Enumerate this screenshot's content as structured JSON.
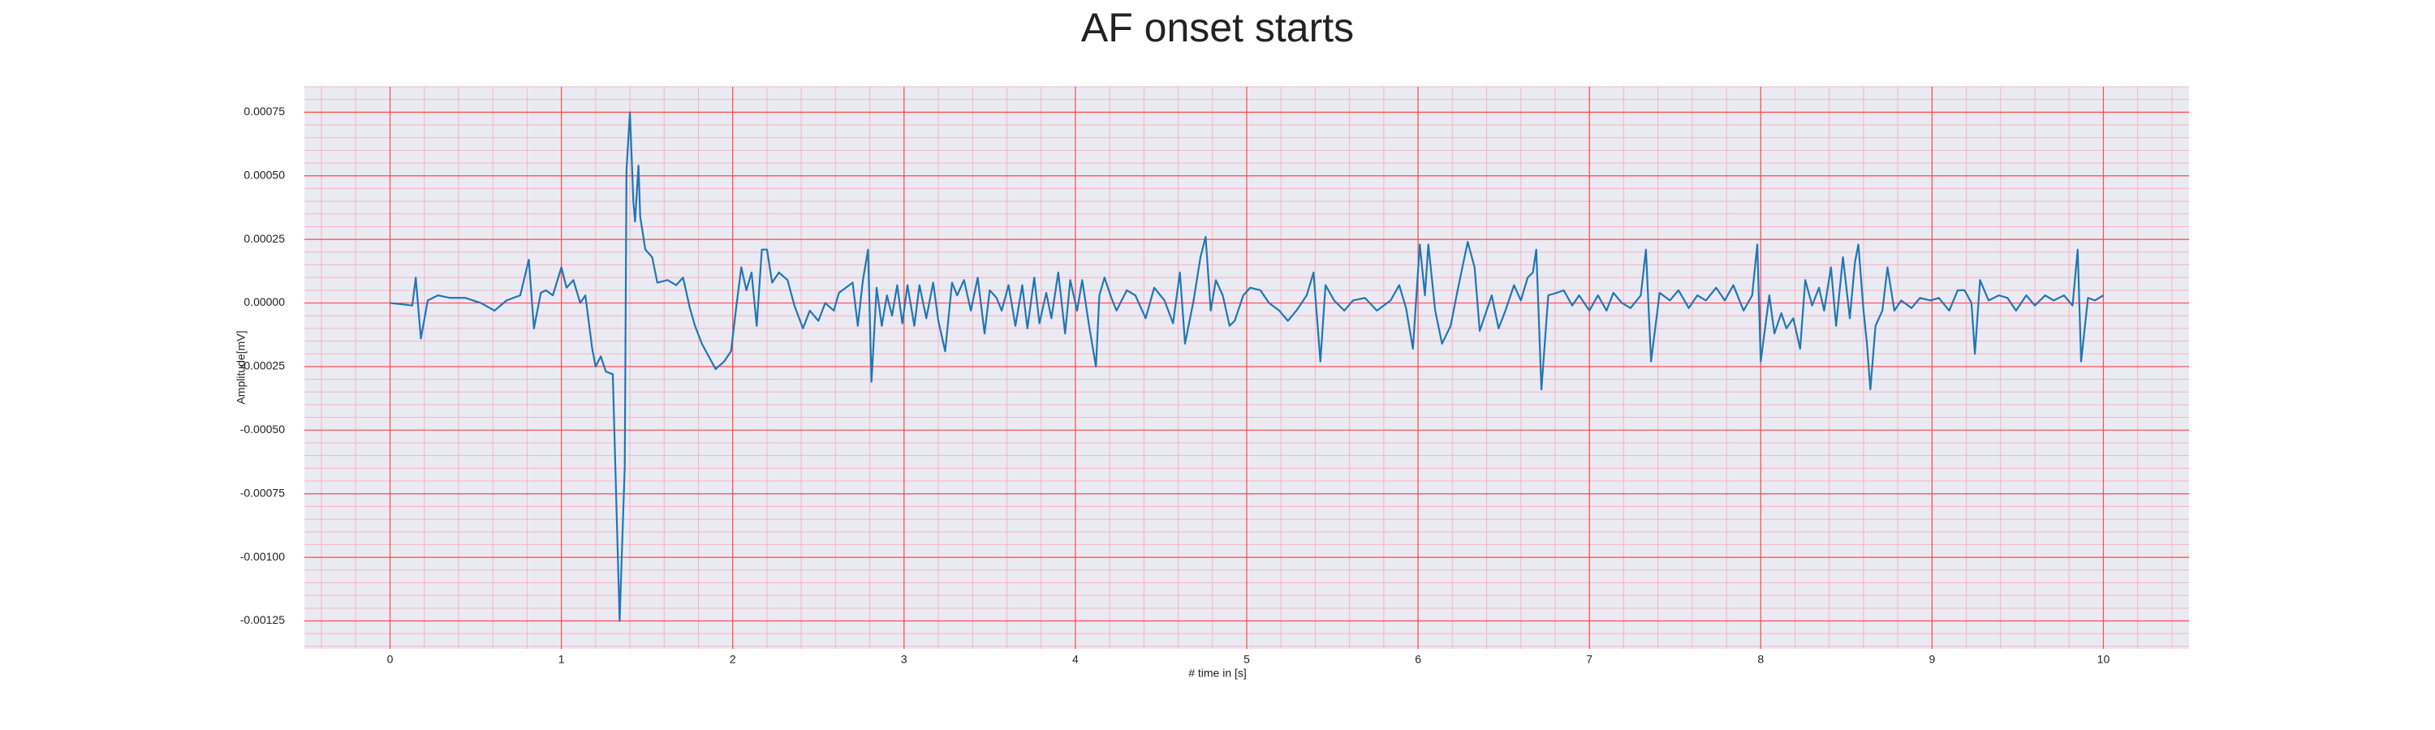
{
  "chart_data": {
    "type": "line",
    "title": "AF onset starts",
    "x_label": "# time in [s]",
    "y_label": "Amplitude[mV]",
    "color": "#1f77b4",
    "grid": true,
    "minor_grid": true,
    "xlim": [
      -0.5,
      10.5
    ],
    "xticks": [
      0,
      1,
      2,
      3,
      4,
      5,
      6,
      7,
      8,
      9,
      10
    ],
    "ylim": [
      -0.00136,
      0.00085
    ],
    "yticks": [
      -0.00125,
      {
        "value": -0.001,
        "label": "-0.00100"
      },
      -0.00075,
      {
        "value": -0.0005,
        "label": "-0.00050"
      },
      -0.00025,
      {
        "value": 0,
        "label": "0.00000"
      },
      0.00025,
      {
        "value": 0.0005,
        "label": "0.00050"
      },
      0.00075
    ],
    "x": [
      0,
      0.08,
      0.13,
      0.15,
      0.18,
      0.22,
      0.28,
      0.35,
      0.44,
      0.53,
      0.61,
      0.68,
      0.76,
      0.81,
      0.84,
      0.88,
      0.91,
      0.95,
      1.0,
      1.03,
      1.07,
      1.11,
      1.14,
      1.18,
      1.2,
      1.23,
      1.26,
      1.3,
      1.34,
      1.37,
      1.38,
      1.4,
      1.42,
      1.43,
      1.45,
      1.46,
      1.49,
      1.53,
      1.56,
      1.62,
      1.67,
      1.71,
      1.75,
      1.78,
      1.82,
      1.86,
      1.9,
      1.95,
      1.99,
      2.02,
      2.05,
      2.08,
      2.11,
      2.14,
      2.17,
      2.2,
      2.23,
      2.27,
      2.32,
      2.36,
      2.41,
      2.45,
      2.5,
      2.54,
      2.59,
      2.62,
      2.66,
      2.7,
      2.73,
      2.76,
      2.79,
      2.81,
      2.84,
      2.87,
      2.9,
      2.93,
      2.96,
      2.99,
      3.02,
      3.06,
      3.09,
      3.13,
      3.17,
      3.2,
      3.24,
      3.28,
      3.31,
      3.35,
      3.39,
      3.43,
      3.47,
      3.5,
      3.54,
      3.57,
      3.61,
      3.65,
      3.69,
      3.72,
      3.76,
      3.79,
      3.83,
      3.86,
      3.9,
      3.94,
      3.97,
      4.01,
      4.04,
      4.08,
      4.12,
      4.14,
      4.17,
      4.21,
      4.24,
      4.3,
      4.35,
      4.41,
      4.46,
      4.52,
      4.57,
      4.61,
      4.64,
      4.69,
      4.73,
      4.76,
      4.79,
      4.82,
      4.86,
      4.9,
      4.93,
      4.98,
      5.02,
      5.08,
      5.13,
      5.19,
      5.24,
      5.29,
      5.35,
      5.39,
      5.43,
      5.46,
      5.51,
      5.57,
      5.62,
      5.69,
      5.76,
      5.84,
      5.89,
      5.93,
      5.97,
      6.01,
      6.04,
      6.06,
      6.1,
      6.14,
      6.19,
      6.24,
      6.29,
      6.33,
      6.36,
      6.4,
      6.43,
      6.47,
      6.51,
      6.56,
      6.6,
      6.64,
      6.67,
      6.69,
      6.72,
      6.76,
      6.81,
      6.85,
      6.9,
      6.94,
      7.0,
      7.05,
      7.1,
      7.14,
      7.19,
      7.24,
      7.3,
      7.33,
      7.36,
      7.41,
      7.47,
      7.52,
      7.58,
      7.63,
      7.68,
      7.74,
      7.79,
      7.84,
      7.9,
      7.95,
      7.98,
      8.0,
      8.05,
      8.08,
      8.12,
      8.15,
      8.19,
      8.23,
      8.26,
      8.3,
      8.34,
      8.37,
      8.41,
      8.44,
      8.48,
      8.52,
      8.55,
      8.57,
      8.6,
      8.62,
      8.64,
      8.67,
      8.71,
      8.74,
      8.78,
      8.82,
      8.88,
      8.93,
      8.99,
      9.04,
      9.1,
      9.15,
      9.19,
      9.23,
      9.25,
      9.28,
      9.33,
      9.39,
      9.44,
      9.49,
      9.55,
      9.6,
      9.66,
      9.71,
      9.77,
      9.82,
      9.85,
      9.87,
      9.91,
      9.95,
      10.0
    ],
    "values": [
      0,
      -6e-06,
      -1e-05,
      0.0001,
      -0.00014,
      1e-05,
      3e-05,
      2e-05,
      2e-05,
      0,
      -3e-05,
      1e-05,
      3e-05,
      0.00017,
      -0.0001,
      4e-05,
      5e-05,
      3e-05,
      0.00014,
      6e-05,
      9e-05,
      0,
      3e-05,
      -0.00018,
      -0.00025,
      -0.00021,
      -0.00027,
      -0.00028,
      -0.00125,
      -0.00064,
      0.00052,
      0.00075,
      0.0004,
      0.00032,
      0.00054,
      0.00034,
      0.00021,
      0.00018,
      8e-05,
      9e-05,
      7e-05,
      0.0001,
      -2e-05,
      -9e-05,
      -0.00016,
      -0.00021,
      -0.00026,
      -0.00023,
      -0.00019,
      -2e-05,
      0.00014,
      5e-05,
      0.00012,
      -9e-05,
      0.00021,
      0.00021,
      8e-05,
      0.00012,
      9e-05,
      -1e-05,
      -0.0001,
      -3e-05,
      -7e-05,
      0,
      -3e-05,
      4e-05,
      6e-05,
      8e-05,
      -9e-05,
      9e-05,
      0.00021,
      -0.00031,
      6e-05,
      -9e-05,
      3e-05,
      -5e-05,
      7e-05,
      -8e-05,
      7e-05,
      -9e-05,
      7e-05,
      -6e-05,
      8e-05,
      -7e-05,
      -0.00019,
      8e-05,
      3e-05,
      9e-05,
      -3e-05,
      0.0001,
      -0.00012,
      5e-05,
      2e-05,
      -3e-05,
      7e-05,
      -9e-05,
      7e-05,
      -0.0001,
      0.0001,
      -8e-05,
      4e-05,
      -6e-05,
      0.00012,
      -0.00012,
      9e-05,
      -3e-05,
      9e-05,
      -9e-05,
      -0.00025,
      3e-05,
      0.0001,
      2e-05,
      -3e-05,
      5e-05,
      3e-05,
      -6e-05,
      6e-05,
      1e-05,
      -8e-05,
      0.00012,
      -0.00016,
      1e-05,
      0.00018,
      0.00026,
      -3e-05,
      9e-05,
      3e-05,
      -9e-05,
      -7e-05,
      3e-05,
      6e-05,
      5e-05,
      0,
      -3e-05,
      -7e-05,
      -3e-05,
      3e-05,
      0.00012,
      -0.00023,
      7e-05,
      1e-05,
      -3e-05,
      1e-05,
      2e-05,
      -3e-05,
      1e-05,
      7e-05,
      -2e-05,
      -0.00018,
      0.00023,
      3e-05,
      0.00023,
      -3e-05,
      -0.00016,
      -9e-05,
      8e-05,
      0.00024,
      0.00014,
      -0.00011,
      -3e-05,
      3e-05,
      -0.0001,
      -3e-05,
      7e-05,
      1e-05,
      0.0001,
      0.00012,
      0.00021,
      -0.00034,
      3e-05,
      4e-05,
      5e-05,
      -1e-05,
      3e-05,
      -3e-05,
      3e-05,
      -3e-05,
      4e-05,
      0,
      -2e-05,
      3e-05,
      0.00021,
      -0.00023,
      4e-05,
      1e-05,
      5e-05,
      -2e-05,
      3e-05,
      1e-05,
      6e-05,
      1e-05,
      7e-05,
      -3e-05,
      3e-05,
      0.00023,
      -0.00023,
      3e-05,
      -0.00012,
      -4e-05,
      -0.0001,
      -6e-05,
      -0.00018,
      9e-05,
      -1e-05,
      6e-05,
      -3e-05,
      0.00014,
      -9e-05,
      0.00018,
      -6e-05,
      0.00016,
      0.00023,
      -3e-05,
      -0.00016,
      -0.00034,
      -9e-05,
      -3e-05,
      0.00014,
      -3e-05,
      1e-05,
      -2e-05,
      2e-05,
      1e-05,
      2e-05,
      -3e-05,
      5e-05,
      5e-05,
      0,
      -0.0002,
      9e-05,
      1e-05,
      3e-05,
      2e-05,
      -3e-05,
      3e-05,
      -1e-05,
      3e-05,
      1e-05,
      3e-05,
      -1e-05,
      0.00021,
      -0.00023,
      2e-05,
      1e-05,
      3e-05
    ]
  }
}
